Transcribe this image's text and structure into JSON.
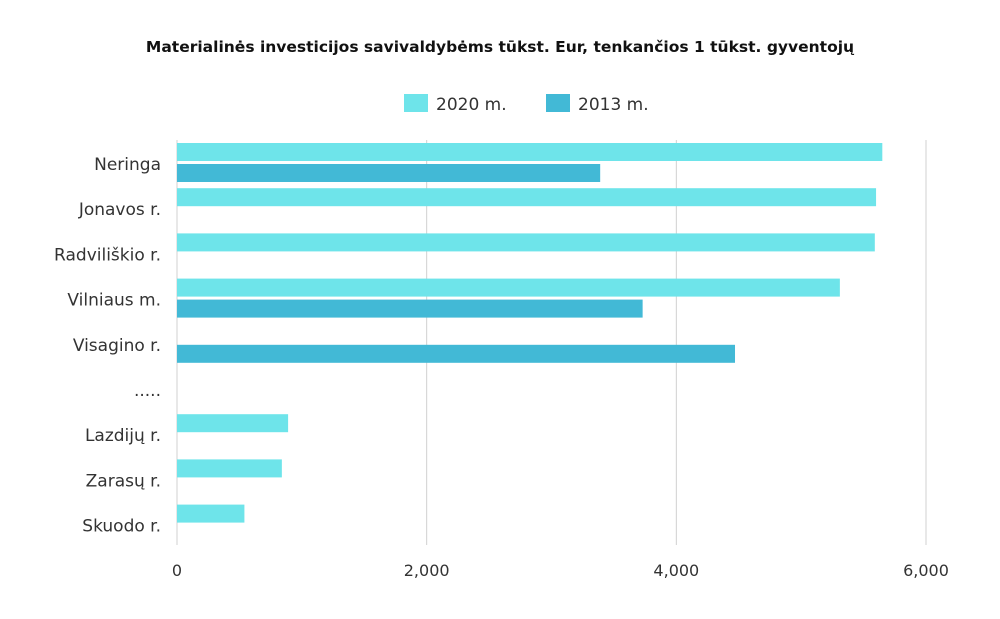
{
  "colors": {
    "series_2020": "#6ee4ea",
    "series_2013": "#42b9d6",
    "grid": "#d0d0d0"
  },
  "chart_data": {
    "type": "bar",
    "orientation": "horizontal",
    "title": "Materialinės investicijos savivaldybėms tūkst. Eur, tenkančios 1 tūkst. gyventojų",
    "categories": [
      "Neringa",
      "Jonavos r.",
      "Radviliškio r.",
      "Vilniaus m.",
      "Visagino r.",
      ".....",
      "Lazdijų r.",
      "Zarasų r.",
      "Skuodo r."
    ],
    "series": [
      {
        "name": "2020 m.",
        "color": "#6ee4ea",
        "values": [
          5650,
          5600,
          5590,
          5310,
          null,
          null,
          890,
          840,
          540
        ]
      },
      {
        "name": "2013 m.",
        "color": "#42b9d6",
        "values": [
          3390,
          null,
          null,
          3730,
          4470,
          null,
          null,
          null,
          null
        ]
      }
    ],
    "xlim": [
      0,
      6000
    ],
    "xticks": [
      0,
      2000,
      4000,
      6000
    ],
    "xtick_labels": [
      "0",
      "2,000",
      "4,000",
      "6,000"
    ],
    "grid": true,
    "legend_position": "top-center"
  }
}
